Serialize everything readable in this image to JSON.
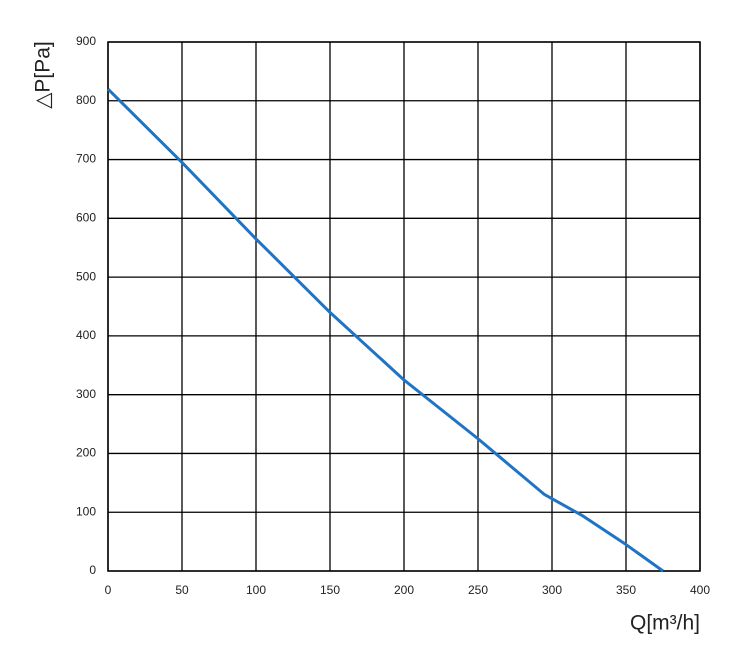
{
  "chart_data": {
    "type": "line",
    "x_label": "Q[m³/h]",
    "y_label": "△P[Pa]",
    "x": [
      0,
      50,
      100,
      150,
      200,
      250,
      295,
      320,
      350,
      375
    ],
    "values": [
      820,
      695,
      565,
      440,
      325,
      225,
      130,
      95,
      45,
      0
    ],
    "color": "#1f74c4",
    "xlim": [
      0,
      400
    ],
    "xticks": [
      0,
      50,
      100,
      150,
      200,
      250,
      300,
      350,
      400
    ],
    "ylim": [
      0,
      900
    ],
    "yticks": [
      0,
      100,
      200,
      300,
      400,
      500,
      600,
      700,
      800,
      900
    ],
    "grid": true
  }
}
